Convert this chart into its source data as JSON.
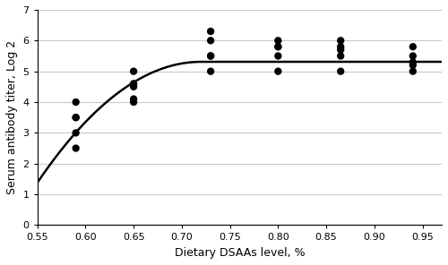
{
  "scatter_x": [
    0.59,
    0.59,
    0.59,
    0.59,
    0.59,
    0.65,
    0.65,
    0.65,
    0.65,
    0.65,
    0.73,
    0.73,
    0.73,
    0.73,
    0.73,
    0.8,
    0.8,
    0.8,
    0.8,
    0.8,
    0.865,
    0.865,
    0.865,
    0.865,
    0.865,
    0.94,
    0.94,
    0.94,
    0.94,
    0.94
  ],
  "scatter_y": [
    4.0,
    3.5,
    3.0,
    2.5,
    3.5,
    4.6,
    4.5,
    4.1,
    4.0,
    5.0,
    5.5,
    5.0,
    6.0,
    6.3,
    5.5,
    5.8,
    6.0,
    5.5,
    5.0,
    5.8,
    6.0,
    5.7,
    5.5,
    5.0,
    5.8,
    5.8,
    5.5,
    5.3,
    5.2,
    5.0
  ],
  "break_point": 0.72,
  "a": 5.31,
  "b": 136,
  "xlim": [
    0.55,
    0.97
  ],
  "ylim": [
    0,
    7
  ],
  "xticks": [
    0.55,
    0.6,
    0.65,
    0.7,
    0.75,
    0.8,
    0.85,
    0.9,
    0.95
  ],
  "xtick_labels": [
    "0.55",
    "0.60",
    "0.65",
    "0.70",
    "0.75",
    "0.80",
    "0.85",
    "0.90",
    "0.95"
  ],
  "yticks": [
    0,
    1,
    2,
    3,
    4,
    5,
    6,
    7
  ],
  "ytick_labels": [
    "0",
    "1",
    "2",
    "3",
    "4",
    "5",
    "6",
    "7"
  ],
  "xlabel": "Dietary DSAAs level, %",
  "ylabel": "Serum antibody titer, Log 2",
  "marker_color": "#000000",
  "line_color": "#000000",
  "marker_size": 36,
  "line_width": 1.8,
  "bg_color": "#ffffff",
  "grid_color": "#c8c8c8",
  "figsize": [
    5.0,
    2.96
  ],
  "dpi": 100
}
